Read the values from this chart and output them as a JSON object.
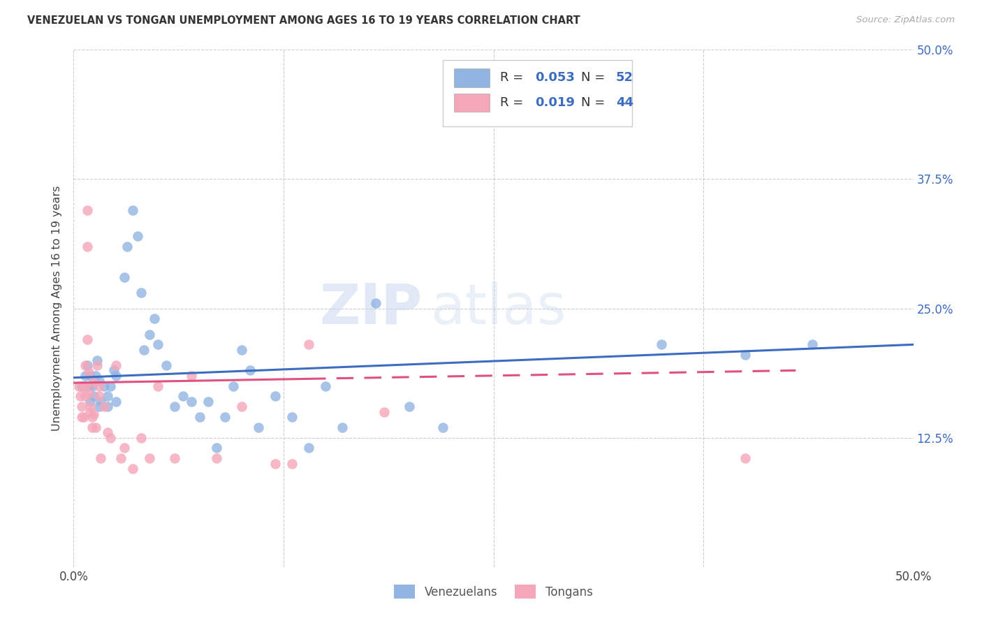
{
  "title": "VENEZUELAN VS TONGAN UNEMPLOYMENT AMONG AGES 16 TO 19 YEARS CORRELATION CHART",
  "source": "Source: ZipAtlas.com",
  "ylabel": "Unemployment Among Ages 16 to 19 years",
  "xlim": [
    0.0,
    0.5
  ],
  "ylim": [
    0.0,
    0.5
  ],
  "xticks": [
    0.0,
    0.125,
    0.25,
    0.375,
    0.5
  ],
  "yticks": [
    0.0,
    0.125,
    0.25,
    0.375,
    0.5
  ],
  "xtick_labels": [
    "0.0%",
    "",
    "",
    "",
    "50.0%"
  ],
  "ytick_labels_right": [
    "",
    "12.5%",
    "25.0%",
    "37.5%",
    "50.0%"
  ],
  "R1": "0.053",
  "N1": "52",
  "R2": "0.019",
  "N2": "44",
  "color_blue": "#92b4e3",
  "color_pink": "#f4a7b9",
  "line_blue": "#3d6cc0",
  "line_pink": "#e05080",
  "watermark_left": "ZIP",
  "watermark_right": "atlas",
  "blue_line_x": [
    0.0,
    0.5
  ],
  "blue_line_y": [
    0.183,
    0.215
  ],
  "pink_line_x": [
    0.0,
    0.43
  ],
  "pink_line_y": [
    0.178,
    0.19
  ],
  "blue_x": [
    0.005,
    0.007,
    0.008,
    0.009,
    0.01,
    0.01,
    0.011,
    0.012,
    0.013,
    0.014,
    0.015,
    0.015,
    0.016,
    0.018,
    0.02,
    0.02,
    0.022,
    0.024,
    0.025,
    0.025,
    0.03,
    0.032,
    0.035,
    0.038,
    0.04,
    0.042,
    0.045,
    0.048,
    0.05,
    0.055,
    0.06,
    0.065,
    0.07,
    0.075,
    0.08,
    0.085,
    0.09,
    0.095,
    0.1,
    0.105,
    0.11,
    0.12,
    0.13,
    0.14,
    0.15,
    0.16,
    0.18,
    0.2,
    0.22,
    0.35,
    0.4,
    0.44
  ],
  "blue_y": [
    0.175,
    0.185,
    0.195,
    0.175,
    0.185,
    0.16,
    0.175,
    0.165,
    0.185,
    0.2,
    0.155,
    0.18,
    0.16,
    0.175,
    0.155,
    0.165,
    0.175,
    0.19,
    0.16,
    0.185,
    0.28,
    0.31,
    0.345,
    0.32,
    0.265,
    0.21,
    0.225,
    0.24,
    0.215,
    0.195,
    0.155,
    0.165,
    0.16,
    0.145,
    0.16,
    0.115,
    0.145,
    0.175,
    0.21,
    0.19,
    0.135,
    0.165,
    0.145,
    0.115,
    0.175,
    0.135,
    0.255,
    0.155,
    0.135,
    0.215,
    0.205,
    0.215
  ],
  "pink_x": [
    0.003,
    0.004,
    0.005,
    0.005,
    0.006,
    0.006,
    0.007,
    0.007,
    0.007,
    0.008,
    0.008,
    0.008,
    0.009,
    0.009,
    0.01,
    0.01,
    0.011,
    0.011,
    0.012,
    0.012,
    0.013,
    0.014,
    0.015,
    0.015,
    0.016,
    0.018,
    0.02,
    0.022,
    0.025,
    0.028,
    0.03,
    0.035,
    0.04,
    0.045,
    0.05,
    0.06,
    0.07,
    0.085,
    0.1,
    0.12,
    0.13,
    0.14,
    0.185,
    0.4
  ],
  "pink_y": [
    0.175,
    0.165,
    0.155,
    0.145,
    0.175,
    0.145,
    0.195,
    0.175,
    0.165,
    0.345,
    0.31,
    0.22,
    0.188,
    0.168,
    0.155,
    0.15,
    0.145,
    0.135,
    0.178,
    0.148,
    0.135,
    0.195,
    0.175,
    0.165,
    0.105,
    0.155,
    0.13,
    0.125,
    0.195,
    0.105,
    0.115,
    0.095,
    0.125,
    0.105,
    0.175,
    0.105,
    0.185,
    0.105,
    0.155,
    0.1,
    0.1,
    0.215,
    0.15,
    0.105
  ]
}
